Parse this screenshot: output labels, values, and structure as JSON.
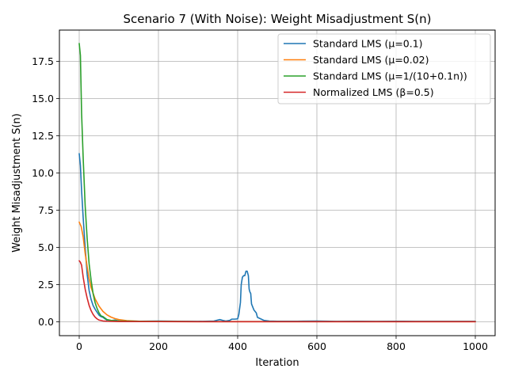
{
  "chart_data": {
    "type": "line",
    "title": "Scenario 7 (With Noise): Weight Misadjustment S(n)",
    "xlabel": "Iteration",
    "ylabel": "Weight Misadjustment S(n)",
    "xlim": [
      -50,
      1050
    ],
    "ylim": [
      -0.93,
      19.6
    ],
    "xticks": [
      0,
      200,
      400,
      600,
      800,
      1000
    ],
    "yticks": [
      0.0,
      2.5,
      5.0,
      7.5,
      10.0,
      12.5,
      15.0,
      17.5
    ],
    "xtick_labels": [
      "0",
      "200",
      "400",
      "600",
      "800",
      "1000"
    ],
    "ytick_labels": [
      "0.0",
      "2.5",
      "5.0",
      "7.5",
      "10.0",
      "12.5",
      "15.0",
      "17.5"
    ],
    "grid": true,
    "legend_position": "top-right",
    "series": [
      {
        "name": "Standard LMS (μ=0.1)",
        "color": "#1f77b4",
        "points": [
          [
            0,
            11.3
          ],
          [
            3,
            10.5
          ],
          [
            6,
            8.8
          ],
          [
            10,
            7.0
          ],
          [
            15,
            5.0
          ],
          [
            20,
            3.2
          ],
          [
            25,
            2.1
          ],
          [
            30,
            1.5
          ],
          [
            35,
            1.1
          ],
          [
            40,
            0.85
          ],
          [
            45,
            0.65
          ],
          [
            50,
            0.45
          ],
          [
            55,
            0.35
          ],
          [
            60,
            0.3
          ],
          [
            65,
            0.2
          ],
          [
            70,
            0.12
          ],
          [
            80,
            0.08
          ],
          [
            90,
            0.12
          ],
          [
            100,
            0.06
          ],
          [
            150,
            0.04
          ],
          [
            200,
            0.05
          ],
          [
            250,
            0.04
          ],
          [
            300,
            0.03
          ],
          [
            340,
            0.05
          ],
          [
            350,
            0.12
          ],
          [
            355,
            0.15
          ],
          [
            362,
            0.1
          ],
          [
            370,
            0.05
          ],
          [
            380,
            0.1
          ],
          [
            385,
            0.18
          ],
          [
            393,
            0.18
          ],
          [
            400,
            0.2
          ],
          [
            403,
            0.5
          ],
          [
            405,
            0.9
          ],
          [
            407,
            1.3
          ],
          [
            409,
            2.5
          ],
          [
            412,
            3.0
          ],
          [
            415,
            3.1
          ],
          [
            418,
            3.1
          ],
          [
            421,
            3.4
          ],
          [
            424,
            3.4
          ],
          [
            427,
            3.1
          ],
          [
            429,
            2.2
          ],
          [
            431,
            2.0
          ],
          [
            433,
            1.9
          ],
          [
            435,
            1.2
          ],
          [
            438,
            1.0
          ],
          [
            441,
            0.8
          ],
          [
            444,
            0.7
          ],
          [
            447,
            0.6
          ],
          [
            450,
            0.3
          ],
          [
            458,
            0.2
          ],
          [
            466,
            0.1
          ],
          [
            480,
            0.05
          ],
          [
            500,
            0.04
          ],
          [
            550,
            0.04
          ],
          [
            600,
            0.05
          ],
          [
            650,
            0.03
          ],
          [
            700,
            0.04
          ],
          [
            750,
            0.03
          ],
          [
            800,
            0.04
          ],
          [
            850,
            0.03
          ],
          [
            900,
            0.03
          ],
          [
            950,
            0.03
          ],
          [
            1000,
            0.03
          ]
        ]
      },
      {
        "name": "Standard LMS (μ=0.02)",
        "color": "#ff7f0e",
        "points": [
          [
            0,
            6.7
          ],
          [
            5,
            6.4
          ],
          [
            10,
            5.7
          ],
          [
            15,
            4.6
          ],
          [
            20,
            3.7
          ],
          [
            25,
            2.9
          ],
          [
            30,
            2.3
          ],
          [
            40,
            1.55
          ],
          [
            50,
            1.05
          ],
          [
            60,
            0.7
          ],
          [
            70,
            0.47
          ],
          [
            80,
            0.32
          ],
          [
            90,
            0.22
          ],
          [
            100,
            0.15
          ],
          [
            120,
            0.08
          ],
          [
            140,
            0.05
          ],
          [
            160,
            0.03
          ],
          [
            200,
            0.02
          ],
          [
            300,
            0.01
          ],
          [
            400,
            0.01
          ],
          [
            500,
            0.01
          ],
          [
            600,
            0.01
          ],
          [
            700,
            0.01
          ],
          [
            800,
            0.01
          ],
          [
            900,
            0.01
          ],
          [
            1000,
            0.01
          ]
        ]
      },
      {
        "name": "Standard LMS (μ=1/(10+0.1n))",
        "color": "#2ca02c",
        "points": [
          [
            0,
            18.7
          ],
          [
            3,
            17.9
          ],
          [
            6,
            14.0
          ],
          [
            10,
            11.0
          ],
          [
            15,
            7.8
          ],
          [
            20,
            5.6
          ],
          [
            25,
            3.9
          ],
          [
            30,
            2.8
          ],
          [
            35,
            1.9
          ],
          [
            40,
            1.3
          ],
          [
            45,
            0.9
          ],
          [
            50,
            0.6
          ],
          [
            55,
            0.4
          ],
          [
            60,
            0.35
          ],
          [
            65,
            0.25
          ],
          [
            70,
            0.15
          ],
          [
            80,
            0.1
          ],
          [
            90,
            0.08
          ],
          [
            100,
            0.06
          ],
          [
            150,
            0.04
          ],
          [
            200,
            0.03
          ],
          [
            300,
            0.02
          ],
          [
            400,
            0.02
          ],
          [
            500,
            0.02
          ],
          [
            600,
            0.02
          ],
          [
            700,
            0.02
          ],
          [
            800,
            0.02
          ],
          [
            900,
            0.02
          ],
          [
            1000,
            0.02
          ]
        ]
      },
      {
        "name": "Normalized LMS (β=0.5)",
        "color": "#d62728",
        "points": [
          [
            0,
            4.1
          ],
          [
            3,
            4.0
          ],
          [
            6,
            3.8
          ],
          [
            10,
            3.0
          ],
          [
            15,
            2.2
          ],
          [
            20,
            1.6
          ],
          [
            25,
            1.1
          ],
          [
            30,
            0.75
          ],
          [
            35,
            0.5
          ],
          [
            40,
            0.32
          ],
          [
            45,
            0.2
          ],
          [
            50,
            0.12
          ],
          [
            60,
            0.06
          ],
          [
            70,
            0.04
          ],
          [
            100,
            0.02
          ],
          [
            200,
            0.02
          ],
          [
            300,
            0.01
          ],
          [
            400,
            0.01
          ],
          [
            500,
            0.01
          ],
          [
            600,
            0.01
          ],
          [
            700,
            0.01
          ],
          [
            800,
            0.01
          ],
          [
            900,
            0.01
          ],
          [
            1000,
            0.01
          ]
        ]
      }
    ]
  }
}
